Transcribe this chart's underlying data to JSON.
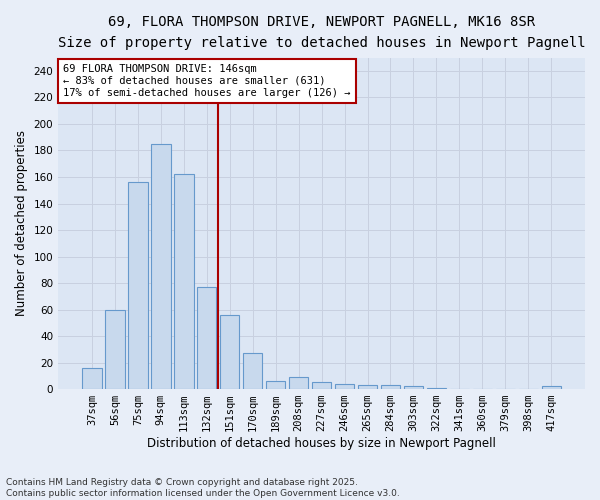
{
  "title_line1": "69, FLORA THOMPSON DRIVE, NEWPORT PAGNELL, MK16 8SR",
  "title_line2": "Size of property relative to detached houses in Newport Pagnell",
  "xlabel": "Distribution of detached houses by size in Newport Pagnell",
  "ylabel": "Number of detached properties",
  "categories": [
    "37sqm",
    "56sqm",
    "75sqm",
    "94sqm",
    "113sqm",
    "132sqm",
    "151sqm",
    "170sqm",
    "189sqm",
    "208sqm",
    "227sqm",
    "246sqm",
    "265sqm",
    "284sqm",
    "303sqm",
    "322sqm",
    "341sqm",
    "360sqm",
    "379sqm",
    "398sqm",
    "417sqm"
  ],
  "values": [
    16,
    60,
    156,
    185,
    162,
    77,
    56,
    27,
    6,
    9,
    5,
    4,
    3,
    3,
    2,
    1,
    0,
    0,
    0,
    0,
    2
  ],
  "bar_color": "#c8d9ed",
  "bar_edge_color": "#6699cc",
  "vline_x": 5.5,
  "vline_color": "#aa0000",
  "annotation_text": "69 FLORA THOMPSON DRIVE: 146sqm\n← 83% of detached houses are smaller (631)\n17% of semi-detached houses are larger (126) →",
  "annotation_box_color": "#ffffff",
  "annotation_box_edge": "#aa0000",
  "ylim": [
    0,
    250
  ],
  "yticks": [
    0,
    20,
    40,
    60,
    80,
    100,
    120,
    140,
    160,
    180,
    200,
    220,
    240
  ],
  "grid_color": "#c8d0e0",
  "background_color": "#dce6f4",
  "fig_background": "#e8eef8",
  "footer": "Contains HM Land Registry data © Crown copyright and database right 2025.\nContains public sector information licensed under the Open Government Licence v3.0.",
  "title_fontsize": 10,
  "subtitle_fontsize": 9,
  "axis_label_fontsize": 8.5,
  "tick_fontsize": 7.5,
  "annotation_fontsize": 7.5,
  "footer_fontsize": 6.5
}
